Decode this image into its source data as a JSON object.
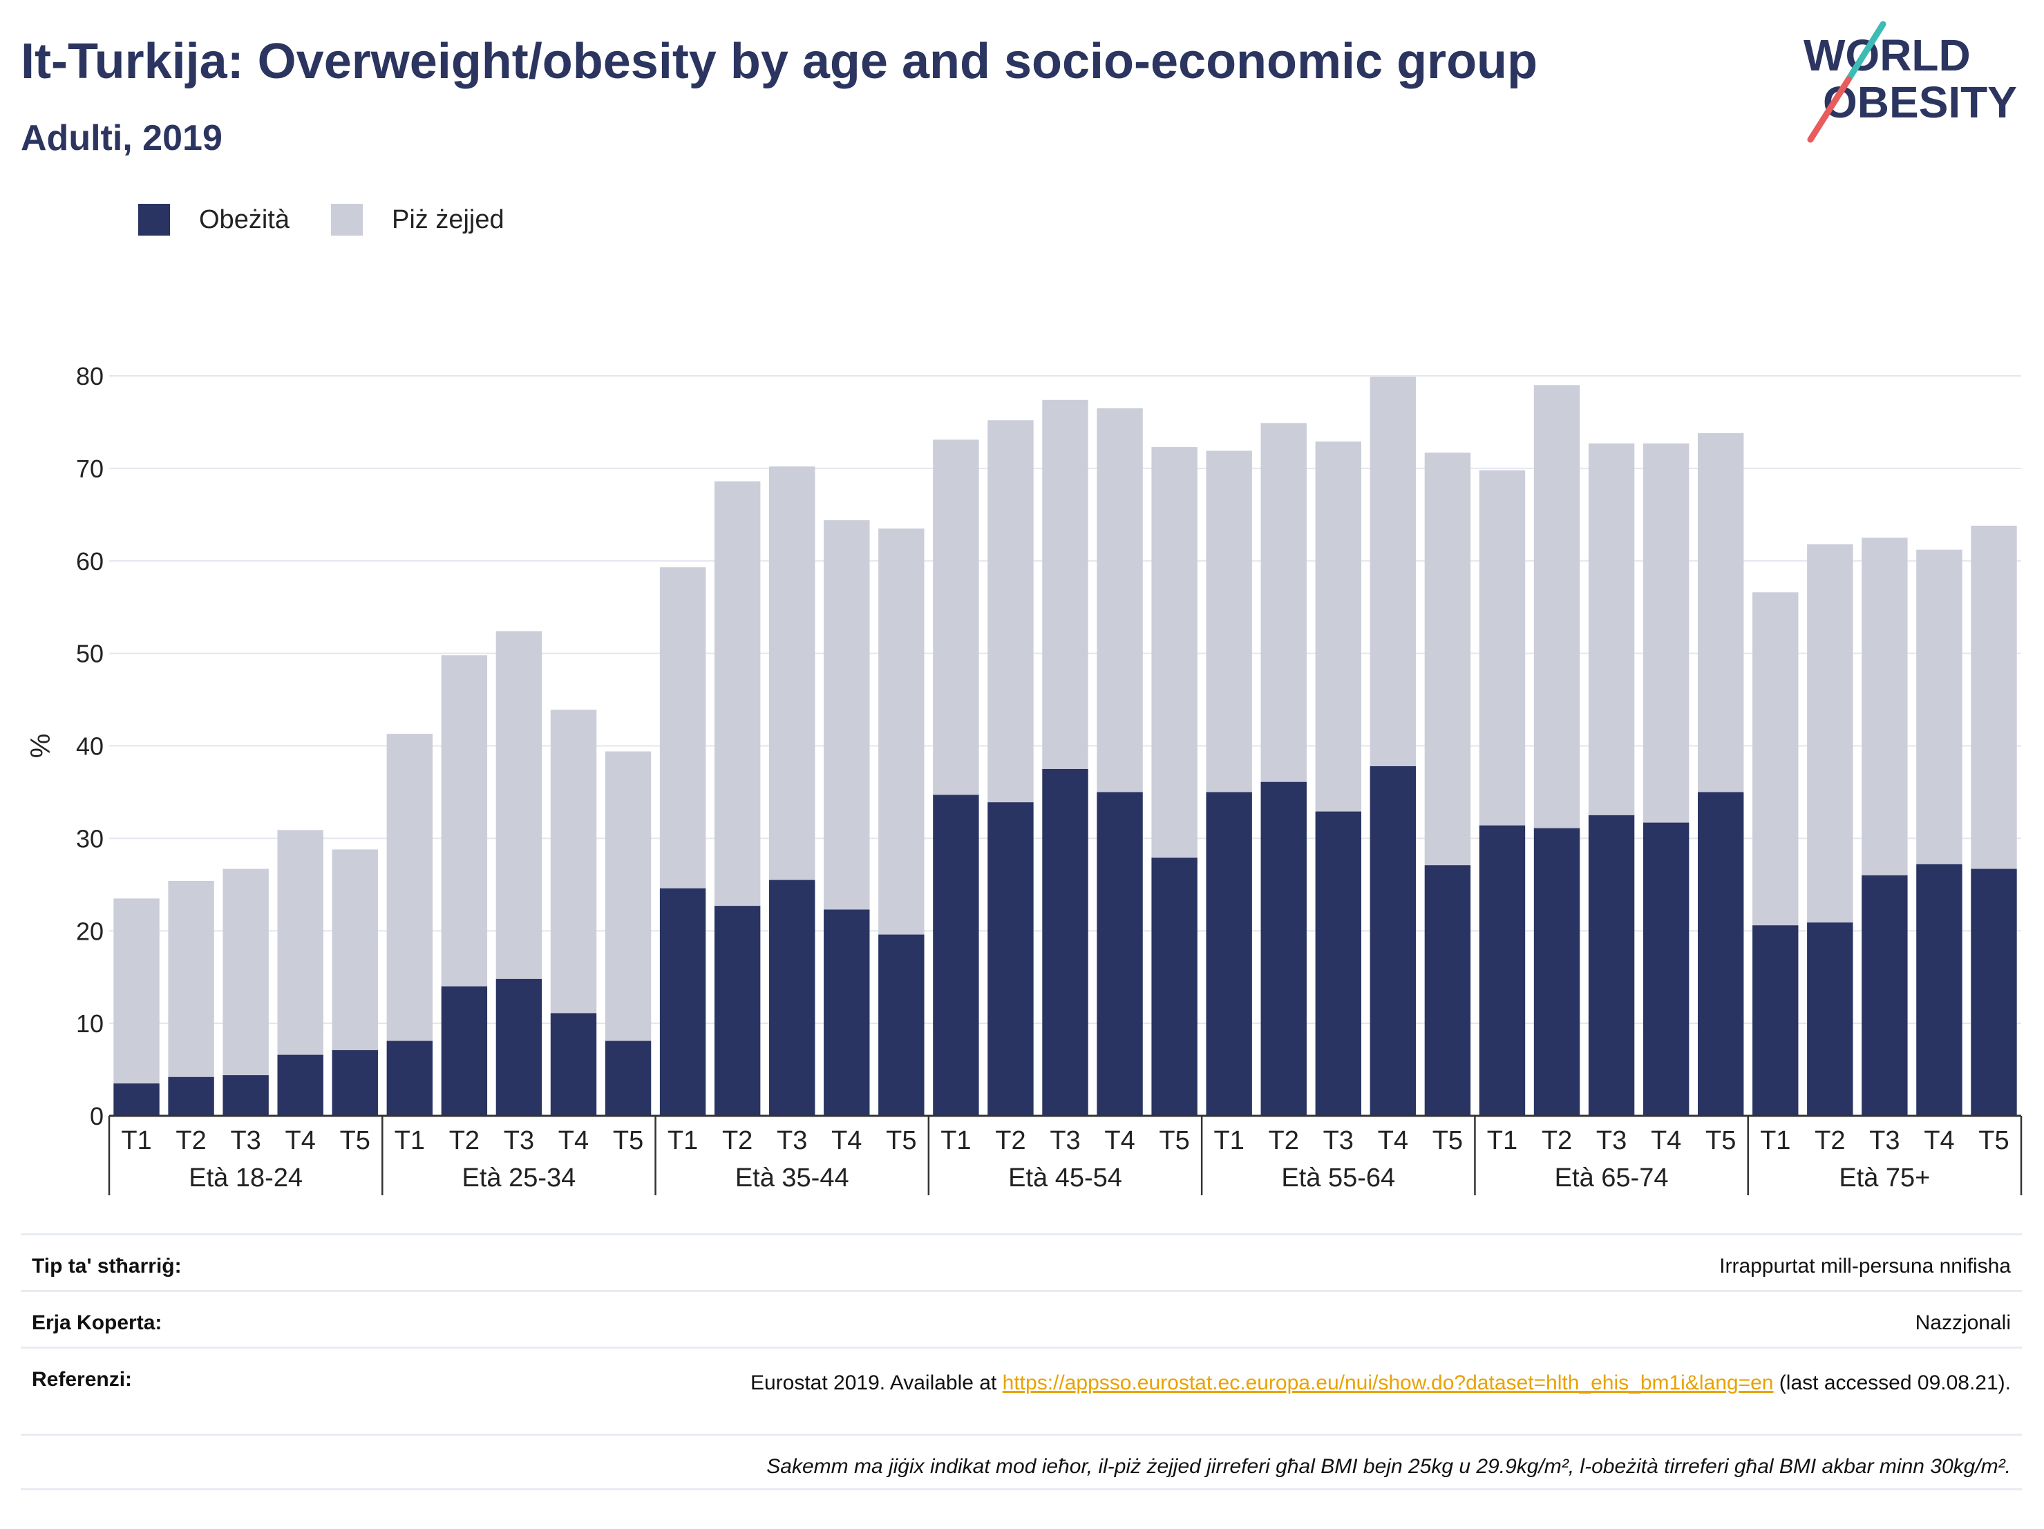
{
  "title": "It-Turkija: Overweight/obesity by age and socio-economic group",
  "subtitle": "Adulti, 2019",
  "logo": {
    "line1": "WORLD",
    "line2": "OBESITY"
  },
  "colors": {
    "obesity": "#293462",
    "overweight": "#cbcdd9",
    "grid": "#e4e6ee",
    "accent_teal": "#3cbcb4",
    "accent_red": "#e85c5c"
  },
  "legend": [
    {
      "label": "Obeżità",
      "color": "#293462"
    },
    {
      "label": "Piż żejjed",
      "color": "#cbcdd9"
    }
  ],
  "chart_data": {
    "type": "bar",
    "stacked": true,
    "ylabel": "%",
    "ylim": [
      0,
      80
    ],
    "yticks": [
      0,
      10,
      20,
      30,
      40,
      50,
      60,
      70,
      80
    ],
    "grid": true,
    "legend_position": "top-left",
    "groups": [
      "Età 18-24",
      "Età 25-34",
      "Età 35-44",
      "Età 45-54",
      "Età 55-64",
      "Età 65-74",
      "Età 75+"
    ],
    "sub_categories": [
      "T1",
      "T2",
      "T3",
      "T4",
      "T5"
    ],
    "series": [
      {
        "name": "Obeżità",
        "values": [
          3.5,
          4.2,
          4.4,
          6.6,
          7.1,
          8.1,
          14.0,
          14.8,
          11.1,
          8.1,
          24.6,
          22.7,
          25.5,
          22.3,
          19.6,
          34.7,
          33.9,
          37.5,
          35.0,
          27.9,
          35.0,
          36.1,
          32.9,
          37.8,
          27.1,
          31.4,
          31.1,
          32.5,
          31.7,
          35.0,
          20.6,
          20.9,
          26.0,
          27.2,
          26.7
        ]
      },
      {
        "name": "Piż żejjed",
        "values": [
          20.0,
          21.2,
          22.3,
          24.3,
          21.7,
          33.2,
          35.8,
          37.6,
          32.8,
          31.3,
          34.7,
          45.9,
          44.7,
          42.1,
          43.9,
          38.4,
          41.3,
          39.9,
          41.5,
          44.4,
          36.9,
          38.8,
          40.0,
          42.1,
          44.6,
          38.4,
          47.9,
          40.2,
          41.0,
          38.8,
          36.0,
          40.9,
          36.5,
          34.0,
          37.1
        ]
      }
    ]
  },
  "meta": {
    "survey_label": "Tip ta' stħarriġ:",
    "survey_value": "Irrappurtat mill-persuna nnifisha",
    "coverage_label": "Erja Koperta:",
    "coverage_value": "Nazzjonali",
    "reference_label": "Referenzi:",
    "reference_prefix": "Eurostat 2019. Available at ",
    "reference_url": "https://appsso.eurostat.ec.europa.eu/nui/show.do?dataset=hlth_ehis_bm1i&lang=en",
    "reference_suffix": " (last accessed 09.08.21).",
    "note": "Sakemm ma jiġix indikat mod ieħor, il-piż żejjed jirreferi għal BMI bejn 25kg u 29.9kg/m², l-obeżità tirreferi għal BMI akbar minn 30kg/m²."
  }
}
